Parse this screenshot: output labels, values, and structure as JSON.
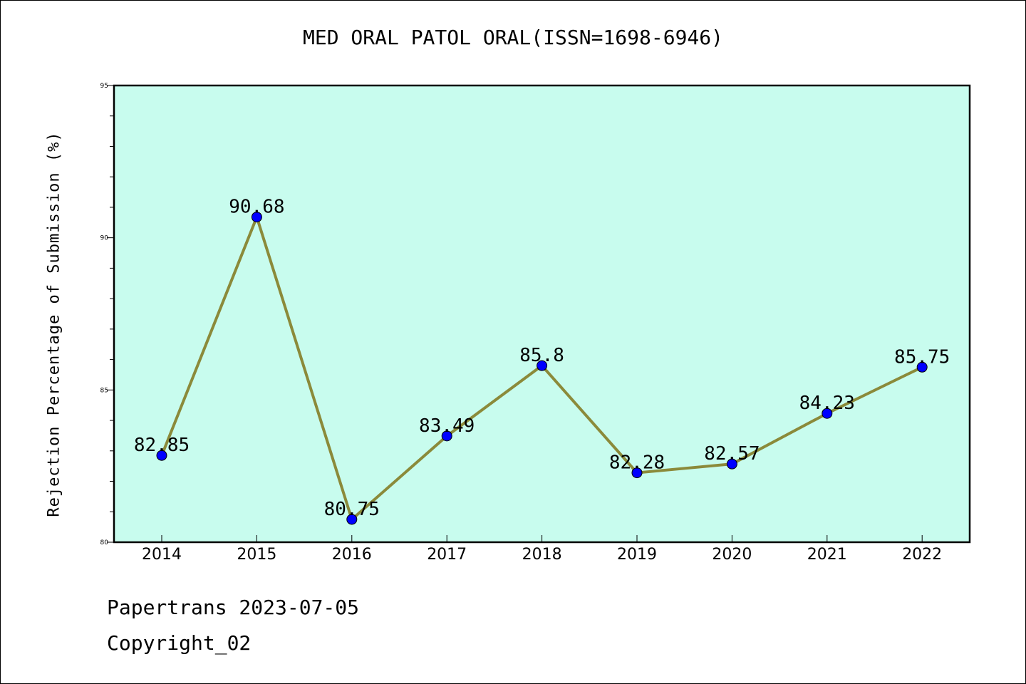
{
  "chart_data": {
    "type": "line",
    "title": "MED ORAL PATOL ORAL(ISSN=1698-6946)",
    "xlabel": "",
    "ylabel": "Rejection Percentage of Submission (%)",
    "categories": [
      "2014",
      "2015",
      "2016",
      "2017",
      "2018",
      "2019",
      "2020",
      "2021",
      "2022"
    ],
    "series": [
      {
        "values": [
          82.85,
          90.68,
          80.75,
          83.49,
          85.8,
          82.28,
          82.57,
          84.23,
          85.75
        ],
        "labels": [
          "82.85",
          "90.68",
          "80.75",
          "83.49",
          "85.8",
          "82.28",
          "82.57",
          "84.23",
          "85.75"
        ]
      }
    ],
    "ylim": [
      80,
      95
    ],
    "yticks": [
      "80",
      "85",
      "90",
      "95"
    ],
    "grid": false,
    "colors": {
      "plot_background": "#c8fcee",
      "line": "#8b8a3a",
      "marker": "#0000ff"
    }
  },
  "footer": {
    "line1": "Papertrans 2023-07-05",
    "line2": "Copyright_02"
  }
}
